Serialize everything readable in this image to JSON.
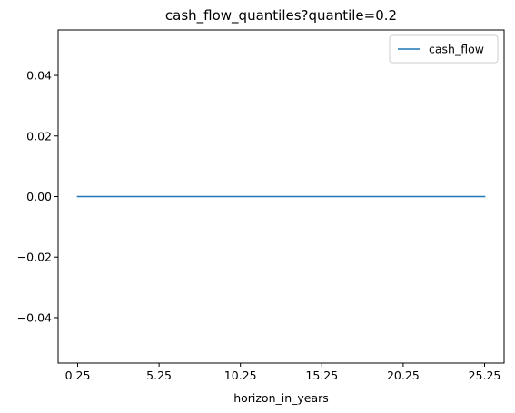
{
  "chart_data": {
    "type": "line",
    "title": "cash_flow_quantiles?quantile=0.2",
    "xlabel": "horizon_in_years",
    "ylabel": "",
    "x": [
      0.25,
      5.25,
      10.25,
      15.25,
      20.25,
      25.25
    ],
    "series": [
      {
        "name": "cash_flow",
        "color": "#1f77b4",
        "values": [
          0,
          0,
          0,
          0,
          0,
          0
        ]
      }
    ],
    "xlim": [
      -0.95,
      26.45
    ],
    "ylim": [
      -0.055,
      0.055
    ],
    "x_ticks": [
      0.25,
      5.25,
      10.25,
      15.25,
      20.25,
      25.25
    ],
    "x_tick_labels": [
      "0.25",
      "5.25",
      "10.25",
      "15.25",
      "20.25",
      "25.25"
    ],
    "y_ticks": [
      0.04,
      0.02,
      0.0,
      -0.02,
      -0.04
    ],
    "y_tick_labels": [
      "0.04",
      "0.02",
      "0.00",
      "−0.02",
      "−0.04"
    ],
    "grid": false,
    "legend_position": "top-right"
  }
}
